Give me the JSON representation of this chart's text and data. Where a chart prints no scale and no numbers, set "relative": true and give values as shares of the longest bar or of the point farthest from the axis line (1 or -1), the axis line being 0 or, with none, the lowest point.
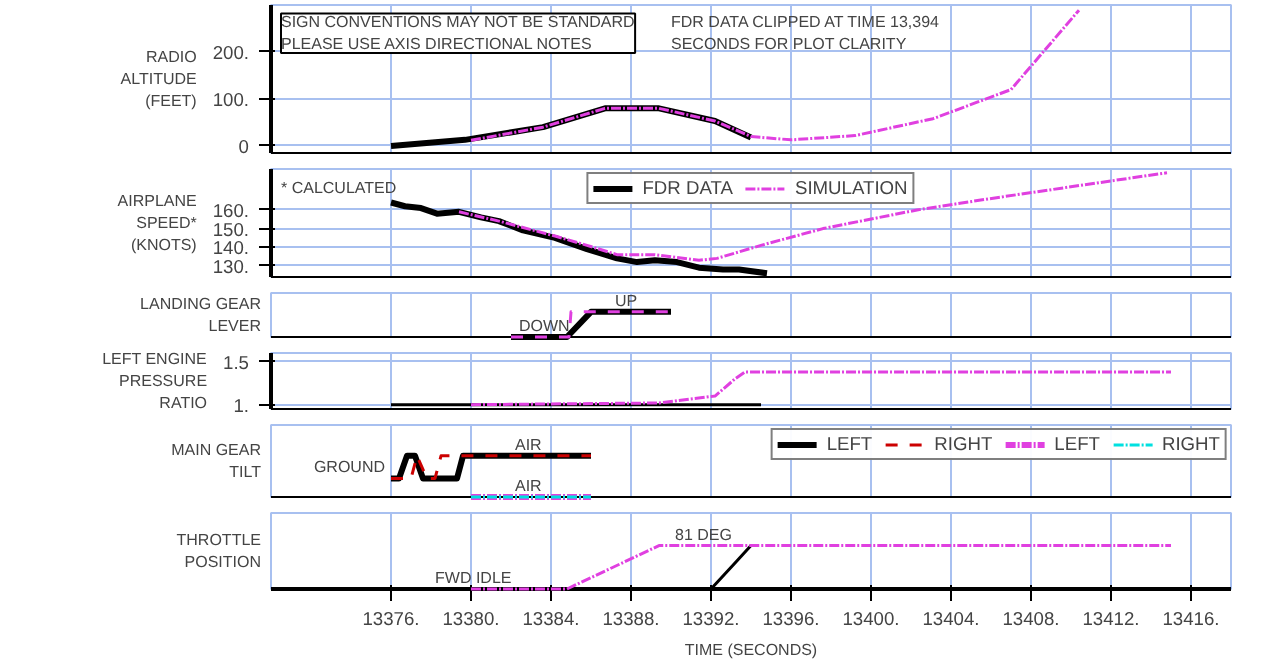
{
  "chart_data": [
    {
      "type": "line",
      "ylabel": "RADIO ALTITUDE (FEET)",
      "xlim": [
        13370,
        13418
      ],
      "xticks": [
        13376,
        13380,
        13384,
        13388,
        13392,
        13396,
        13400,
        13404,
        13408,
        13412,
        13416
      ],
      "ylim": [
        -15,
        300
      ],
      "yticks": [
        {
          "value": 0,
          "label": "0"
        },
        {
          "value": 100,
          "label": "100."
        },
        {
          "value": 200,
          "label": "200."
        }
      ],
      "grid": true,
      "tick_labels": "y",
      "annotations": [
        "SIGN CONVENTIONS MAY NOT BE STANDARD PLEASE USE AXIS DIRECTIONAL NOTES",
        "FDR DATA CLIPPED AT TIME 13,394 SECONDS FOR PLOT CLARITY"
      ],
      "series": [
        {
          "color": "#000000",
          "line_style": "solid",
          "x": [
            13376,
            13379.7,
            13383.6,
            13386.7,
            13389.4,
            13392.2,
            13394
          ],
          "values": [
            0,
            13,
            40,
            80,
            80,
            53,
            18
          ]
        },
        {
          "color": "#e040e0",
          "line_style": "dashdot",
          "x": [
            13380,
            13383.6,
            13386.7,
            13389.4,
            13392.2,
            13394,
            13396,
            13399.2,
            13403.1,
            13407,
            13410.4
          ],
          "values": [
            12,
            40,
            80,
            80,
            53,
            20,
            13,
            22,
            58,
            120,
            289
          ]
        }
      ]
    },
    {
      "type": "line",
      "ylabel": "AIRPLANE SPEED* (KNOTS)",
      "xlim": [
        13370,
        13418
      ],
      "xticks": [
        13376,
        13380,
        13384,
        13388,
        13392,
        13396,
        13400,
        13404,
        13408,
        13412,
        13416
      ],
      "ylim": [
        124,
        182
      ],
      "yticks": [
        {
          "value": 130,
          "label": "130."
        },
        {
          "value": 140,
          "label": "140."
        },
        {
          "value": 150,
          "label": "150."
        },
        {
          "value": 160,
          "label": "160."
        }
      ],
      "grid": true,
      "tick_labels": "y",
      "legend": "top center",
      "annotations": [
        "* CALCULATED"
      ],
      "series": [
        {
          "name": "FDR DATA",
          "color": "#000000",
          "line_style": "solid",
          "x": [
            13376,
            13376.7,
            13377.5,
            13378.3,
            13379.4,
            13380.5,
            13381.4,
            13382.6,
            13384.2,
            13385.8,
            13387.3,
            13388.3,
            13389.2,
            13390.3,
            13391.4,
            13392.6,
            13393.4,
            13394.8
          ],
          "values": [
            164,
            162,
            161,
            158,
            159,
            156,
            154,
            149,
            145,
            139,
            134,
            132,
            133,
            132,
            129,
            128,
            128,
            126
          ]
        },
        {
          "name": "SIMULATION",
          "color": "#e040e0",
          "line_style": "dashdot",
          "x": [
            13379.4,
            13381.4,
            13384.2,
            13385.8,
            13387.3,
            13389.2,
            13391.4,
            13392.3,
            13394.5,
            13397.6,
            13402.3,
            13405.9,
            13414.8
          ],
          "values": [
            159,
            154,
            146,
            141,
            136,
            136,
            133,
            134,
            141,
            150,
            160,
            166,
            180
          ]
        }
      ]
    },
    {
      "type": "line",
      "relative": true,
      "ylabel": "LANDING GEAR LEVER",
      "xlim": [
        13370,
        13418
      ],
      "xticks": [
        13376,
        13380,
        13384,
        13388,
        13392,
        13396,
        13400,
        13404,
        13408,
        13412,
        13416
      ],
      "grid": true,
      "tick_labels": false,
      "annotations": [
        {
          "text": "DOWN",
          "x": 13382.2,
          "y": 0
        },
        {
          "text": "UP",
          "x": 13387,
          "y": 1
        }
      ],
      "series": [
        {
          "color": "#000000",
          "line_style": "solid",
          "x": [
            13382,
            13384.8,
            13386,
            13390
          ],
          "values": [
            0,
            0,
            1,
            1
          ]
        },
        {
          "color": "#e040e0",
          "line_style": "dashed",
          "x": [
            13382,
            13384.9,
            13385,
            13390
          ],
          "values": [
            0,
            0,
            1,
            1
          ]
        }
      ]
    },
    {
      "type": "line",
      "ylabel": "LEFT ENGINE PRESSURE RATIO",
      "xlim": [
        13370,
        13418
      ],
      "xticks": [
        13376,
        13380,
        13384,
        13388,
        13392,
        13396,
        13400,
        13404,
        13408,
        13412,
        13416
      ],
      "ylim": [
        0.95,
        1.6
      ],
      "yticks": [
        {
          "value": 1,
          "label": "1."
        },
        {
          "value": 1.5,
          "label": "1.5"
        }
      ],
      "grid": true,
      "tick_labels": "y",
      "series": [
        {
          "color": "#000000",
          "line_style": "solid",
          "x": [
            13376,
            13394.5
          ],
          "values": [
            1,
            1
          ]
        },
        {
          "color": "#e040e0",
          "line_style": "dashdot",
          "x": [
            13380,
            13389.4,
            13392.2,
            13393.2,
            13393.7,
            13415
          ],
          "values": [
            1,
            1.02,
            1.1,
            1.3,
            1.38,
            1.38
          ]
        }
      ]
    },
    {
      "type": "line",
      "relative": true,
      "ylabel": "MAIN GEAR TILT",
      "xlim": [
        13370,
        13418
      ],
      "xticks": [
        13376,
        13380,
        13384,
        13388,
        13392,
        13396,
        13400,
        13404,
        13408,
        13412,
        13416
      ],
      "grid": true,
      "tick_labels": false,
      "legend": "right",
      "annotations": [
        {
          "text": "GROUND",
          "x": 13376,
          "y": 0.45
        },
        {
          "text": "AIR",
          "x": 13382,
          "y": 1
        },
        {
          "text": "AIR",
          "x": 13382,
          "y": 0
        }
      ],
      "series": [
        {
          "name": "LEFT",
          "color": "#000000",
          "line_style": "solid",
          "x": [
            13376,
            13376.4,
            13376.8,
            13377.2,
            13377.6,
            13379.3,
            13379.6,
            13386
          ],
          "values": [
            0.45,
            0.45,
            1,
            1,
            0.45,
            0.45,
            1,
            1
          ]
        },
        {
          "name": "RIGHT",
          "color": "#cc0000",
          "line_style": "dashed",
          "x": [
            13376,
            13377,
            13377.3,
            13377.8,
            13378.2,
            13378.5,
            13386
          ],
          "values": [
            0.45,
            0.45,
            1,
            0.45,
            0.45,
            1,
            1
          ]
        },
        {
          "name": "LEFT",
          "color": "#e040e0",
          "line_style": "dashdot",
          "x": [
            13380,
            13386
          ],
          "values": [
            0,
            0
          ]
        },
        {
          "name": "RIGHT",
          "color": "#00e0e0",
          "line_style": "dashdot",
          "x": [
            13380,
            13386
          ],
          "values": [
            0,
            0
          ]
        }
      ]
    },
    {
      "type": "line",
      "relative": true,
      "ylabel": "THROTTLE POSITION",
      "xlabel": "TIME (SECONDS)",
      "xlim": [
        13370,
        13418
      ],
      "xticks": [
        {
          "value": 13376,
          "label": "13376."
        },
        {
          "value": 13380,
          "label": "13380."
        },
        {
          "value": 13384,
          "label": "13384."
        },
        {
          "value": 13388,
          "label": "13388."
        },
        {
          "value": 13392,
          "label": "13392."
        },
        {
          "value": 13396,
          "label": "13396."
        },
        {
          "value": 13400,
          "label": "13400."
        },
        {
          "value": 13404,
          "label": "13404."
        },
        {
          "value": 13408,
          "label": "13408."
        },
        {
          "value": 13412,
          "label": "13412."
        },
        {
          "value": 13416,
          "label": "13416."
        }
      ],
      "grid": true,
      "tick_labels": "x",
      "annotations": [
        {
          "text": "FWD IDLE",
          "x": 13378,
          "y": 0
        },
        {
          "text": "81 DEG",
          "x": 13390,
          "y": 1
        }
      ],
      "series": [
        {
          "color": "#000000",
          "line_style": "solid",
          "x": [
            13376,
            13392,
            13393.2,
            13394
          ],
          "values": [
            0,
            0,
            0.6,
            1
          ]
        },
        {
          "color": "#e040e0",
          "line_style": "dashdot",
          "x": [
            13380,
            13384.8,
            13389.4,
            13415
          ],
          "values": [
            0,
            0,
            1,
            1
          ]
        }
      ]
    }
  ]
}
